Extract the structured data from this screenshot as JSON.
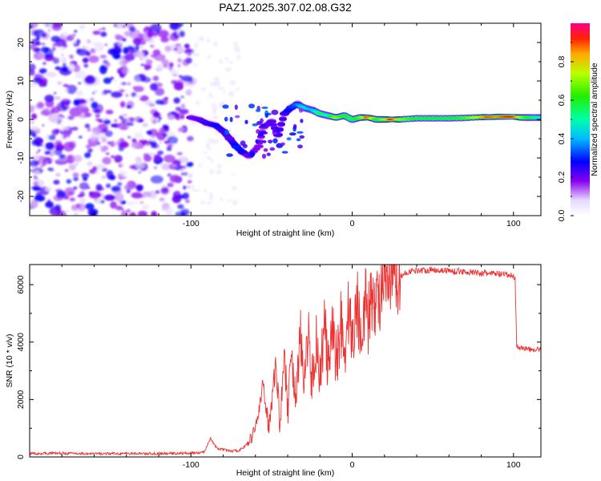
{
  "figure_title": "PAZ1.2025.307.02.08.G32",
  "chart_data": [
    {
      "type": "heatmap",
      "title": "PAZ1.2025.307.02.08.G32",
      "xlabel": "Height of straight line (km)",
      "ylabel": "Frequency (Hz)",
      "xlim": [
        -200,
        117
      ],
      "ylim": [
        -25,
        25
      ],
      "xticks": [
        -100,
        0,
        100
      ],
      "yticks": [
        -20,
        -10,
        0,
        10,
        20
      ],
      "colorbar": {
        "label": "Normalized spectral amplitude",
        "range": [
          0,
          1
        ],
        "ticks": [
          0.0,
          0.2,
          0.4,
          0.6,
          0.8
        ]
      },
      "noise_region": {
        "x_from": -200,
        "x_to": -100,
        "y_from": -25,
        "y_to": 25,
        "amplitude_max": 0.15
      },
      "ridge": [
        {
          "x": -100,
          "y": 0.5,
          "amp": 0.2
        },
        {
          "x": -95,
          "y": 0,
          "amp": 0.22
        },
        {
          "x": -90,
          "y": -1,
          "amp": 0.25
        },
        {
          "x": -85,
          "y": -1.5,
          "amp": 0.28
        },
        {
          "x": -80,
          "y": -3,
          "amp": 0.25
        },
        {
          "x": -76,
          "y": -5,
          "amp": 0.22
        },
        {
          "x": -72,
          "y": -7,
          "amp": 0.3
        },
        {
          "x": -68,
          "y": -8.5,
          "amp": 0.28
        },
        {
          "x": -64,
          "y": -9.5,
          "amp": 0.22
        },
        {
          "x": -58,
          "y": -7,
          "amp": 0.18
        },
        {
          "x": -55,
          "y": -2,
          "amp": 0.2
        },
        {
          "x": -50,
          "y": -0.5,
          "amp": 0.22
        },
        {
          "x": -46,
          "y": -4,
          "amp": 0.25
        },
        {
          "x": -42,
          "y": 1.5,
          "amp": 0.25
        },
        {
          "x": -38,
          "y": 3,
          "amp": 0.3
        },
        {
          "x": -34,
          "y": 4,
          "amp": 0.35
        },
        {
          "x": -30,
          "y": 3,
          "amp": 0.45
        },
        {
          "x": -25,
          "y": 2.5,
          "amp": 0.4
        },
        {
          "x": -20,
          "y": 1.5,
          "amp": 0.55
        },
        {
          "x": -15,
          "y": 1,
          "amp": 0.5
        },
        {
          "x": -10,
          "y": 0.5,
          "amp": 0.7
        },
        {
          "x": -5,
          "y": 1,
          "amp": 0.6
        },
        {
          "x": 0,
          "y": 0,
          "amp": 0.55
        },
        {
          "x": 5,
          "y": 0.5,
          "amp": 0.65
        },
        {
          "x": 10,
          "y": 0.5,
          "amp": 0.9
        },
        {
          "x": 15,
          "y": 0,
          "amp": 0.6
        },
        {
          "x": 20,
          "y": 0,
          "amp": 0.7
        },
        {
          "x": 25,
          "y": 0,
          "amp": 0.95
        },
        {
          "x": 30,
          "y": 0,
          "amp": 0.7
        },
        {
          "x": 40,
          "y": 0.3,
          "amp": 0.6
        },
        {
          "x": 50,
          "y": 0.3,
          "amp": 0.6
        },
        {
          "x": 60,
          "y": 0.3,
          "amp": 0.6
        },
        {
          "x": 70,
          "y": 0.4,
          "amp": 0.65
        },
        {
          "x": 80,
          "y": 0.6,
          "amp": 0.8
        },
        {
          "x": 85,
          "y": 0.6,
          "amp": 0.9
        },
        {
          "x": 90,
          "y": 0.7,
          "amp": 0.85
        },
        {
          "x": 95,
          "y": 0.7,
          "amp": 0.9
        },
        {
          "x": 100,
          "y": 0.7,
          "amp": 0.95
        },
        {
          "x": 105,
          "y": 0.5,
          "amp": 0.7
        },
        {
          "x": 110,
          "y": 0.5,
          "amp": 0.6
        },
        {
          "x": 117,
          "y": 0.5,
          "amp": 0.5
        }
      ]
    },
    {
      "type": "line",
      "xlabel": "Height of straight line (km)",
      "ylabel": "SNR (10 * v/v)",
      "xlim": [
        -200,
        117
      ],
      "ylim": [
        0,
        6700
      ],
      "xticks": [
        -100,
        0,
        100
      ],
      "yticks": [
        0,
        2000,
        4000,
        6000
      ],
      "series": [
        {
          "name": "SNR",
          "color": "#ee3333",
          "x": [
            -200,
            -180,
            -160,
            -140,
            -120,
            -100,
            -92,
            -88,
            -84,
            -80,
            -75,
            -70,
            -66,
            -62,
            -58,
            -55,
            -52,
            -50,
            -47,
            -45,
            -42,
            -40,
            -38,
            -35,
            -32,
            -30,
            -27,
            -25,
            -22,
            -20,
            -17,
            -15,
            -12,
            -10,
            -7,
            -5,
            -2,
            0,
            3,
            5,
            8,
            10,
            13,
            15,
            18,
            20,
            25,
            30,
            35,
            40,
            45,
            50,
            60,
            70,
            80,
            90,
            100,
            101,
            102,
            103,
            105,
            110,
            117
          ],
          "values": [
            120,
            130,
            110,
            120,
            115,
            130,
            160,
            650,
            300,
            250,
            200,
            230,
            400,
            700,
            1500,
            2600,
            1000,
            2000,
            3200,
            1200,
            3700,
            1500,
            3900,
            1800,
            4400,
            2200,
            4600,
            2500,
            4200,
            2800,
            4700,
            3000,
            4300,
            3300,
            4800,
            3600,
            5200,
            4000,
            5400,
            4400,
            5500,
            4800,
            5700,
            5300,
            5800,
            5900,
            6100,
            6300,
            6450,
            6500,
            6500,
            6520,
            6480,
            6450,
            6400,
            6380,
            6300,
            6200,
            3900,
            3800,
            3800,
            3750,
            3750
          ]
        }
      ]
    }
  ]
}
